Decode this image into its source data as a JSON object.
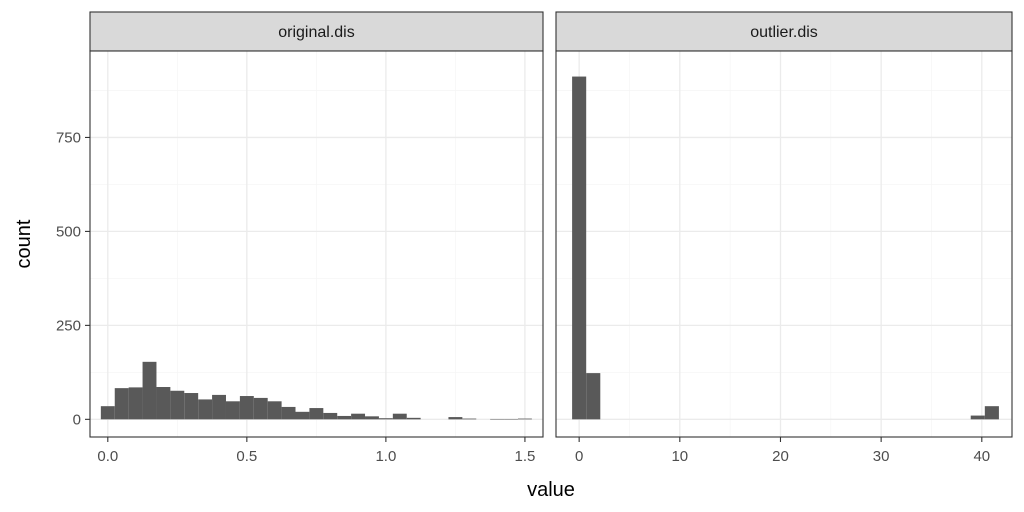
{
  "chart_data": {
    "type": "bar",
    "kind": "faceted-histogram",
    "xlabel": "value",
    "ylabel": "count",
    "ylim": [
      -47,
      980
    ],
    "y_ticks": [
      0,
      250,
      500,
      750
    ],
    "y_tick_labels": [
      "0",
      "250",
      "500",
      "750"
    ],
    "grid": true,
    "colors": {
      "bar": "#595959",
      "strip_fill": "#d9d9d9",
      "panel_border": "#333333",
      "grid_major": "#ebebeb",
      "grid_minor": "#f5f5f5",
      "background": "#ffffff"
    },
    "facets": [
      {
        "strip_label": "original.dis",
        "xlim": [
          -0.064,
          1.565
        ],
        "x_ticks": [
          0.0,
          0.5,
          1.0,
          1.5
        ],
        "x_tick_labels": [
          "0.0",
          "0.5",
          "1.0",
          "1.5"
        ],
        "bins": [
          {
            "x0": -0.025,
            "x1": 0.025,
            "count": 35
          },
          {
            "x0": 0.025,
            "x1": 0.075,
            "count": 83
          },
          {
            "x0": 0.075,
            "x1": 0.125,
            "count": 85
          },
          {
            "x0": 0.125,
            "x1": 0.175,
            "count": 153
          },
          {
            "x0": 0.175,
            "x1": 0.225,
            "count": 86
          },
          {
            "x0": 0.225,
            "x1": 0.275,
            "count": 76
          },
          {
            "x0": 0.275,
            "x1": 0.325,
            "count": 70
          },
          {
            "x0": 0.325,
            "x1": 0.375,
            "count": 53
          },
          {
            "x0": 0.375,
            "x1": 0.425,
            "count": 65
          },
          {
            "x0": 0.425,
            "x1": 0.475,
            "count": 48
          },
          {
            "x0": 0.475,
            "x1": 0.525,
            "count": 62
          },
          {
            "x0": 0.525,
            "x1": 0.575,
            "count": 57
          },
          {
            "x0": 0.575,
            "x1": 0.625,
            "count": 48
          },
          {
            "x0": 0.625,
            "x1": 0.675,
            "count": 33
          },
          {
            "x0": 0.675,
            "x1": 0.725,
            "count": 20
          },
          {
            "x0": 0.725,
            "x1": 0.775,
            "count": 30
          },
          {
            "x0": 0.775,
            "x1": 0.825,
            "count": 17
          },
          {
            "x0": 0.825,
            "x1": 0.875,
            "count": 9
          },
          {
            "x0": 0.875,
            "x1": 0.925,
            "count": 15
          },
          {
            "x0": 0.925,
            "x1": 0.975,
            "count": 8
          },
          {
            "x0": 0.975,
            "x1": 1.025,
            "count": 3
          },
          {
            "x0": 1.025,
            "x1": 1.075,
            "count": 15
          },
          {
            "x0": 1.075,
            "x1": 1.125,
            "count": 4
          },
          {
            "x0": 1.125,
            "x1": 1.175,
            "count": 0
          },
          {
            "x0": 1.175,
            "x1": 1.225,
            "count": 0
          },
          {
            "x0": 1.225,
            "x1": 1.275,
            "count": 6
          },
          {
            "x0": 1.275,
            "x1": 1.325,
            "count": 2
          },
          {
            "x0": 1.325,
            "x1": 1.375,
            "count": 0
          },
          {
            "x0": 1.375,
            "x1": 1.425,
            "count": 1
          },
          {
            "x0": 1.425,
            "x1": 1.475,
            "count": 1
          },
          {
            "x0": 1.475,
            "x1": 1.525,
            "count": 2
          }
        ]
      },
      {
        "strip_label": "outlier.dis",
        "xlim": [
          -2.3,
          43.0
        ],
        "x_ticks": [
          0,
          10,
          20,
          30,
          40
        ],
        "x_tick_labels": [
          "0",
          "10",
          "20",
          "30",
          "40"
        ],
        "bins": [
          {
            "x0": -0.7,
            "x1": 0.7,
            "count": 912
          },
          {
            "x0": 0.7,
            "x1": 2.1,
            "count": 123
          },
          {
            "x0": 38.9,
            "x1": 40.3,
            "count": 10
          },
          {
            "x0": 40.3,
            "x1": 41.7,
            "count": 35
          }
        ]
      }
    ]
  }
}
